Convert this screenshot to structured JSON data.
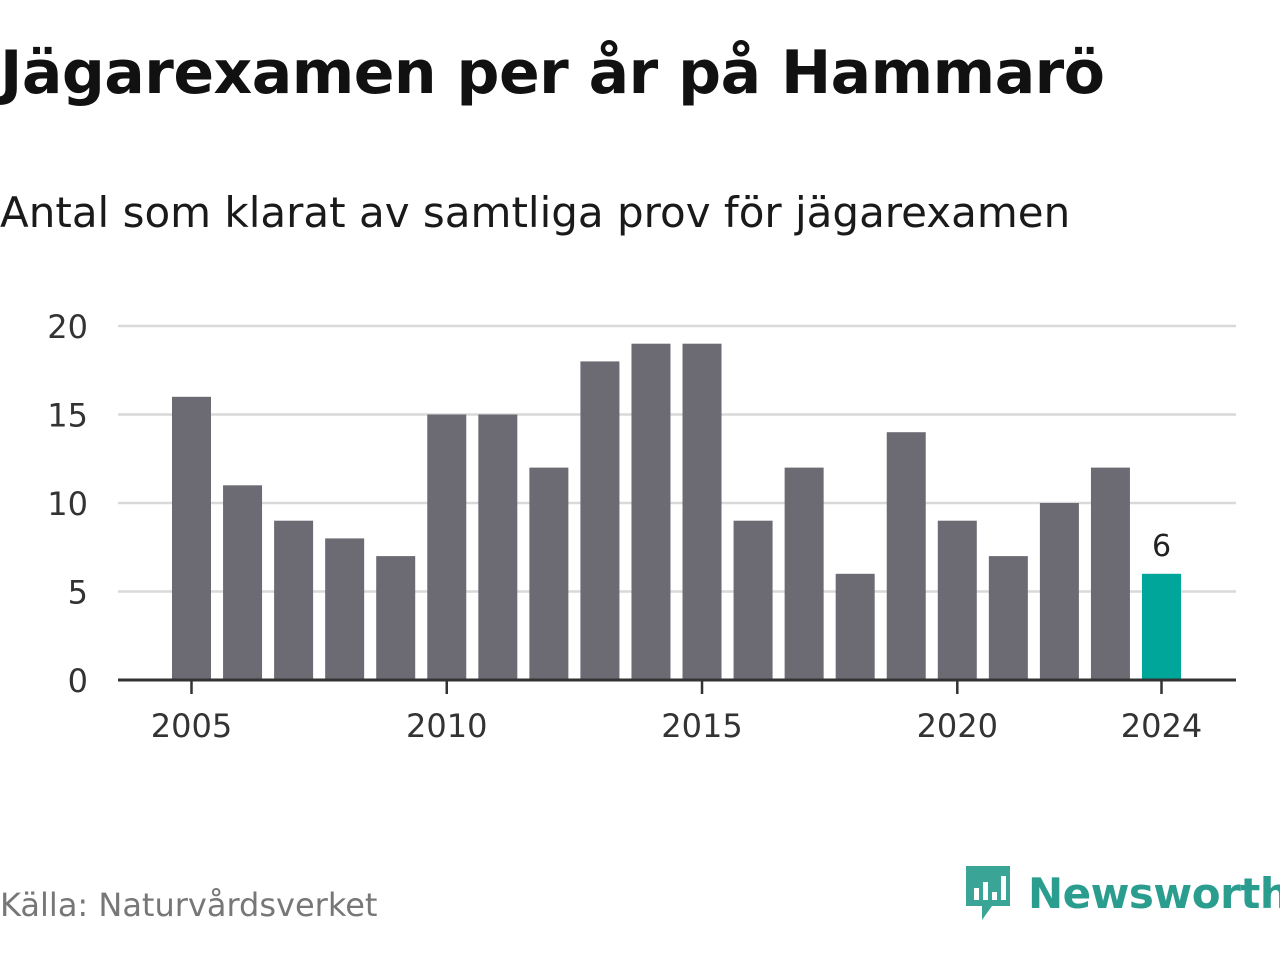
{
  "header": {
    "title": "Jägarexamen per år på Hammarö",
    "subtitle": "Antal som klarat av samtliga prov för jägarexamen"
  },
  "footer": {
    "source": "Källa: Naturvårdsverket",
    "brand": "Newsworthy"
  },
  "colors": {
    "bar": "#6c6b73",
    "highlight": "#00a69a",
    "grid": "#d9d9d9",
    "axis": "#333333",
    "brand": "#2a9d8f"
  },
  "icons": {
    "logo": "newsworthy-logo-icon"
  },
  "chart_data": {
    "type": "bar",
    "title": "Jägarexamen per år på Hammarö",
    "subtitle": "Antal som klarat av samtliga prov för jägarexamen",
    "categories": [
      "2005",
      "2006",
      "2007",
      "2008",
      "2009",
      "2010",
      "2011",
      "2012",
      "2013",
      "2014",
      "2015",
      "2016",
      "2017",
      "2018",
      "2019",
      "2020",
      "2021",
      "2022",
      "2023",
      "2024"
    ],
    "values": [
      16,
      11,
      9,
      8,
      7,
      15,
      15,
      12,
      18,
      19,
      19,
      9,
      12,
      6,
      14,
      9,
      7,
      10,
      12,
      6
    ],
    "highlight_index": 19,
    "highlight_label": "6",
    "x_ticks": [
      "2005",
      "2010",
      "2015",
      "2020",
      "2024"
    ],
    "y_ticks": [
      0,
      5,
      10,
      15,
      20
    ],
    "ylim": [
      0,
      20
    ],
    "grid": true,
    "legend": "none"
  }
}
